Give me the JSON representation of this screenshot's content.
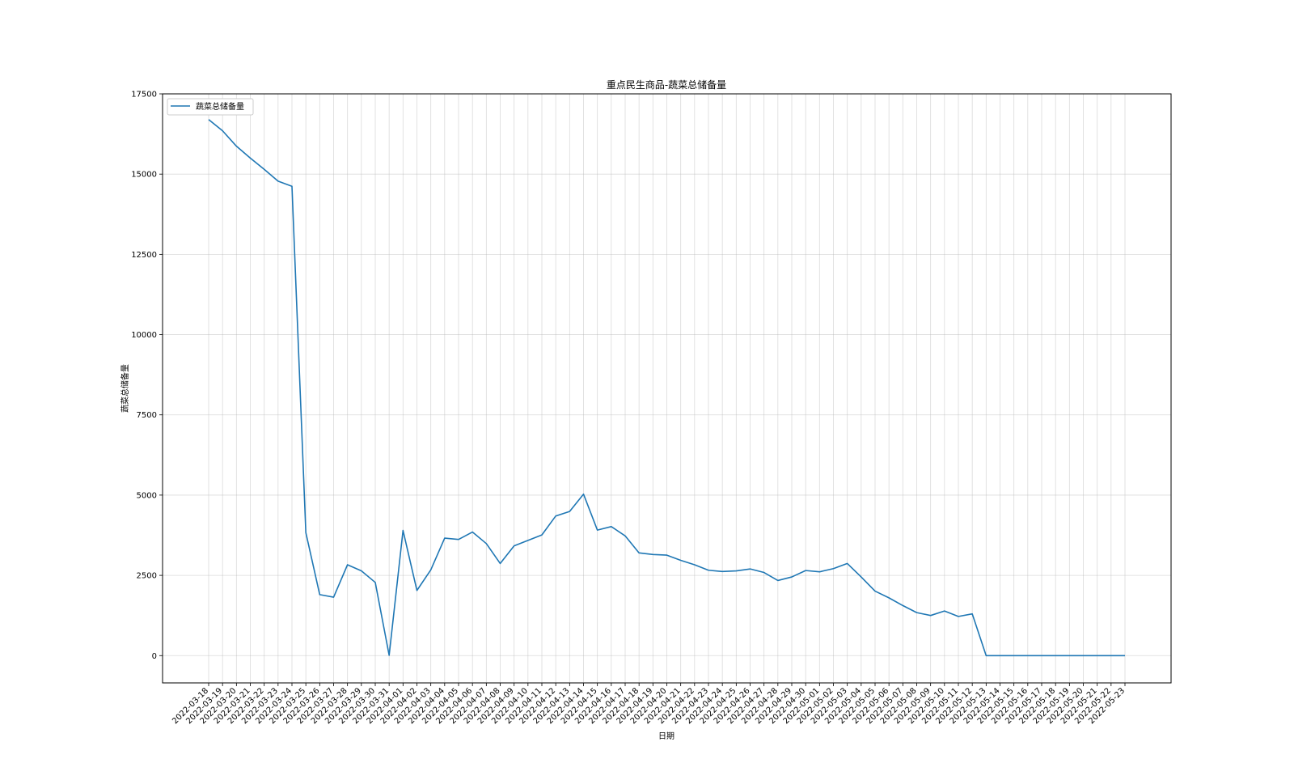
{
  "chart_data": {
    "type": "line",
    "title": "重点民生商品-蔬菜总储备量",
    "xlabel": "日期",
    "ylabel": "蔬菜总储备量",
    "ylim": [
      -850,
      17500
    ],
    "yticks": [
      0,
      2500,
      5000,
      7500,
      10000,
      12500,
      15000,
      17500
    ],
    "grid": true,
    "legend_position": "top-left",
    "line_color": "#1f77b4",
    "x": [
      "2022-03-18",
      "2022-03-19",
      "2022-03-20",
      "2022-03-21",
      "2022-03-22",
      "2022-03-23",
      "2022-03-24",
      "2022-03-25",
      "2022-03-26",
      "2022-03-27",
      "2022-03-28",
      "2022-03-29",
      "2022-03-30",
      "2022-03-31",
      "2022-04-01",
      "2022-04-02",
      "2022-04-03",
      "2022-04-04",
      "2022-04-05",
      "2022-04-06",
      "2022-04-07",
      "2022-04-08",
      "2022-04-09",
      "2022-04-10",
      "2022-04-11",
      "2022-04-12",
      "2022-04-13",
      "2022-04-14",
      "2022-04-15",
      "2022-04-16",
      "2022-04-17",
      "2022-04-18",
      "2022-04-19",
      "2022-04-20",
      "2022-04-21",
      "2022-04-22",
      "2022-04-23",
      "2022-04-24",
      "2022-04-25",
      "2022-04-26",
      "2022-04-27",
      "2022-04-28",
      "2022-04-29",
      "2022-04-30",
      "2022-05-01",
      "2022-05-02",
      "2022-05-03",
      "2022-05-04",
      "2022-05-05",
      "2022-05-06",
      "2022-05-07",
      "2022-05-08",
      "2022-05-09",
      "2022-05-10",
      "2022-05-11",
      "2022-05-12",
      "2022-05-13",
      "2022-05-14",
      "2022-05-15",
      "2022-05-16",
      "2022-05-17",
      "2022-05-18",
      "2022-05-19",
      "2022-05-20",
      "2022-05-21",
      "2022-05-22",
      "2022-05-23"
    ],
    "series": [
      {
        "name": "蔬菜总储备量",
        "values": [
          16700,
          16350,
          15870,
          15500,
          15150,
          14780,
          14620,
          3830,
          1900,
          1820,
          2830,
          2640,
          2280,
          10,
          3900,
          2030,
          2670,
          3660,
          3620,
          3850,
          3490,
          2870,
          3420,
          3590,
          3760,
          4350,
          4490,
          5030,
          3910,
          4020,
          3730,
          3200,
          3150,
          3130,
          2970,
          2830,
          2660,
          2620,
          2640,
          2700,
          2590,
          2340,
          2450,
          2650,
          2610,
          2710,
          2870,
          2450,
          2010,
          1800,
          1560,
          1340,
          1250,
          1390,
          1220,
          1300,
          0,
          0,
          0,
          0,
          0,
          0,
          0,
          0,
          0,
          0,
          0
        ]
      }
    ]
  }
}
